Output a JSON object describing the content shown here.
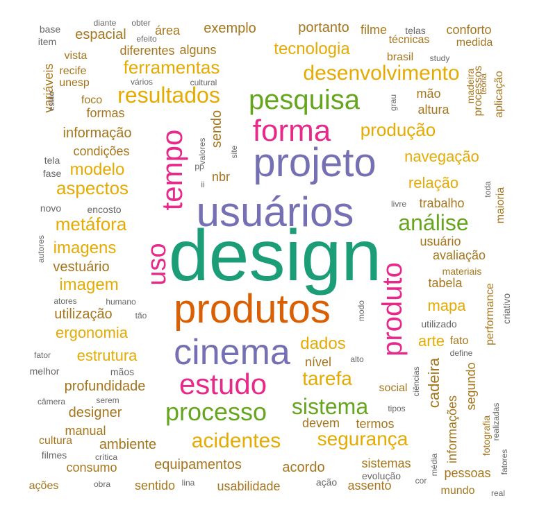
{
  "wordcloud": {
    "palette": {
      "green": "#1b9e77",
      "orange": "#d95f02",
      "purple": "#7570b3",
      "magenta": "#e7298a",
      "leaf": "#66a61e",
      "gold": "#e6ab02",
      "brown": "#a6761d",
      "gray": "#666666"
    },
    "words": [
      {
        "text": "design",
        "color": "green",
        "rotate": 0
      },
      {
        "text": "produtos",
        "color": "orange",
        "rotate": 0
      },
      {
        "text": "usuários",
        "color": "purple",
        "rotate": 0
      },
      {
        "text": "projeto",
        "color": "purple",
        "rotate": 0
      },
      {
        "text": "cinema",
        "color": "purple",
        "rotate": 0
      },
      {
        "text": "forma",
        "color": "magenta",
        "rotate": 0
      },
      {
        "text": "estudo",
        "color": "magenta",
        "rotate": 0
      },
      {
        "text": "tempo",
        "color": "magenta",
        "rotate": -90
      },
      {
        "text": "uso",
        "color": "magenta",
        "rotate": -90
      },
      {
        "text": "produto",
        "color": "magenta",
        "rotate": -90
      },
      {
        "text": "pesquisa",
        "color": "leaf",
        "rotate": 0
      },
      {
        "text": "processo",
        "color": "leaf",
        "rotate": 0
      },
      {
        "text": "sistema",
        "color": "leaf",
        "rotate": 0
      },
      {
        "text": "análise",
        "color": "leaf",
        "rotate": 0
      },
      {
        "text": "desenvolvimento",
        "color": "gold",
        "rotate": 0
      },
      {
        "text": "resultados",
        "color": "gold",
        "rotate": 0
      },
      {
        "text": "ferramentas",
        "color": "gold",
        "rotate": 0
      },
      {
        "text": "tecnologia",
        "color": "gold",
        "rotate": 0
      },
      {
        "text": "produção",
        "color": "gold",
        "rotate": 0
      },
      {
        "text": "navegação",
        "color": "gold",
        "rotate": 0
      },
      {
        "text": "relação",
        "color": "gold",
        "rotate": 0
      },
      {
        "text": "aspectos",
        "color": "gold",
        "rotate": 0
      },
      {
        "text": "modelo",
        "color": "gold",
        "rotate": 0
      },
      {
        "text": "metáfora",
        "color": "gold",
        "rotate": 0
      },
      {
        "text": "imagens",
        "color": "gold",
        "rotate": 0
      },
      {
        "text": "imagem",
        "color": "gold",
        "rotate": 0
      },
      {
        "text": "ergonomia",
        "color": "gold",
        "rotate": 0
      },
      {
        "text": "estrutura",
        "color": "gold",
        "rotate": 0
      },
      {
        "text": "tarefa",
        "color": "gold",
        "rotate": 0
      },
      {
        "text": "dados",
        "color": "gold",
        "rotate": 0
      },
      {
        "text": "acidentes",
        "color": "gold",
        "rotate": 0
      },
      {
        "text": "segurança",
        "color": "gold",
        "rotate": 0
      },
      {
        "text": "mapa",
        "color": "gold",
        "rotate": 0
      },
      {
        "text": "arte",
        "color": "gold",
        "rotate": 0
      },
      {
        "text": "exemplo",
        "color": "brown",
        "rotate": 0
      },
      {
        "text": "portanto",
        "color": "brown",
        "rotate": 0
      },
      {
        "text": "filme",
        "color": "brown",
        "rotate": 0
      },
      {
        "text": "conforto",
        "color": "brown",
        "rotate": 0
      },
      {
        "text": "técnicas",
        "color": "brown",
        "rotate": 0
      },
      {
        "text": "medida",
        "color": "brown",
        "rotate": 0
      },
      {
        "text": "brasil",
        "color": "brown",
        "rotate": 0
      },
      {
        "text": "espacial",
        "color": "brown",
        "rotate": 0
      },
      {
        "text": "área",
        "color": "brown",
        "rotate": 0
      },
      {
        "text": "diferentes",
        "color": "brown",
        "rotate": 0
      },
      {
        "text": "alguns",
        "color": "brown",
        "rotate": 0
      },
      {
        "text": "vista",
        "color": "brown",
        "rotate": 0
      },
      {
        "text": "recife",
        "color": "brown",
        "rotate": 0
      },
      {
        "text": "unesp",
        "color": "brown",
        "rotate": 0
      },
      {
        "text": "foco",
        "color": "brown",
        "rotate": 0
      },
      {
        "text": "formas",
        "color": "brown",
        "rotate": 0
      },
      {
        "text": "informação",
        "color": "brown",
        "rotate": 0
      },
      {
        "text": "condições",
        "color": "brown",
        "rotate": 0
      },
      {
        "text": "vestuário",
        "color": "brown",
        "rotate": 0
      },
      {
        "text": "utilização",
        "color": "brown",
        "rotate": 0
      },
      {
        "text": "profundidade",
        "color": "brown",
        "rotate": 0
      },
      {
        "text": "designer",
        "color": "brown",
        "rotate": 0
      },
      {
        "text": "manual",
        "color": "brown",
        "rotate": 0
      },
      {
        "text": "cultura",
        "color": "brown",
        "rotate": 0
      },
      {
        "text": "ambiente",
        "color": "brown",
        "rotate": 0
      },
      {
        "text": "consumo",
        "color": "brown",
        "rotate": 0
      },
      {
        "text": "equipamentos",
        "color": "brown",
        "rotate": 0
      },
      {
        "text": "acordo",
        "color": "brown",
        "rotate": 0
      },
      {
        "text": "sistemas",
        "color": "brown",
        "rotate": 0
      },
      {
        "text": "sentido",
        "color": "brown",
        "rotate": 0
      },
      {
        "text": "usabilidade",
        "color": "brown",
        "rotate": 0
      },
      {
        "text": "assento",
        "color": "brown",
        "rotate": 0
      },
      {
        "text": "pessoas",
        "color": "brown",
        "rotate": 0
      },
      {
        "text": "ações",
        "color": "brown",
        "rotate": 0
      },
      {
        "text": "mundo",
        "color": "brown",
        "rotate": 0
      },
      {
        "text": "mão",
        "color": "brown",
        "rotate": 0
      },
      {
        "text": "altura",
        "color": "brown",
        "rotate": 0
      },
      {
        "text": "trabalho",
        "color": "brown",
        "rotate": 0
      },
      {
        "text": "usuário",
        "color": "brown",
        "rotate": 0
      },
      {
        "text": "avaliação",
        "color": "brown",
        "rotate": 0
      },
      {
        "text": "materiais",
        "color": "brown",
        "rotate": 0
      },
      {
        "text": "tabela",
        "color": "brown",
        "rotate": 0
      },
      {
        "text": "fato",
        "color": "brown",
        "rotate": 0
      },
      {
        "text": "nível",
        "color": "brown",
        "rotate": 0
      },
      {
        "text": "devem",
        "color": "brown",
        "rotate": 0
      },
      {
        "text": "termos",
        "color": "brown",
        "rotate": 0
      },
      {
        "text": "social",
        "color": "brown",
        "rotate": 0
      },
      {
        "text": "sendo",
        "color": "brown",
        "rotate": -90
      },
      {
        "text": "nbr",
        "color": "brown",
        "rotate": 0
      },
      {
        "text": "variáveis",
        "color": "brown",
        "rotate": -90
      },
      {
        "text": "processos",
        "color": "brown",
        "rotate": -90
      },
      {
        "text": "aplicação",
        "color": "brown",
        "rotate": -90
      },
      {
        "text": "maioria",
        "color": "brown",
        "rotate": -90
      },
      {
        "text": "cadeira",
        "color": "brown",
        "rotate": -90
      },
      {
        "text": "segundo",
        "color": "brown",
        "rotate": -90
      },
      {
        "text": "performance",
        "color": "brown",
        "rotate": -90
      },
      {
        "text": "informações",
        "color": "brown",
        "rotate": -90
      },
      {
        "text": "fotografia",
        "color": "brown",
        "rotate": -90
      },
      {
        "text": "madeira",
        "color": "brown",
        "rotate": -90
      },
      {
        "text": "teoria",
        "color": "brown",
        "rotate": -90
      },
      {
        "text": "base",
        "color": "gray",
        "rotate": 0
      },
      {
        "text": "item",
        "color": "gray",
        "rotate": 0
      },
      {
        "text": "diante",
        "color": "gray",
        "rotate": 0
      },
      {
        "text": "obter",
        "color": "gray",
        "rotate": 0
      },
      {
        "text": "efeito",
        "color": "gray",
        "rotate": 0
      },
      {
        "text": "telas",
        "color": "gray",
        "rotate": 0
      },
      {
        "text": "study",
        "color": "gray",
        "rotate": 0
      },
      {
        "text": "vários",
        "color": "gray",
        "rotate": 0
      },
      {
        "text": "cultural",
        "color": "gray",
        "rotate": 0
      },
      {
        "text": "estilo",
        "color": "gray",
        "rotate": -90
      },
      {
        "text": "grau",
        "color": "gray",
        "rotate": -90
      },
      {
        "text": "valores",
        "color": "gray",
        "rotate": -90
      },
      {
        "text": "site",
        "color": "gray",
        "rotate": -90
      },
      {
        "text": "pp",
        "color": "gray",
        "rotate": 0
      },
      {
        "text": "ii",
        "color": "gray",
        "rotate": 0
      },
      {
        "text": "tela",
        "color": "gray",
        "rotate": 0
      },
      {
        "text": "fase",
        "color": "gray",
        "rotate": 0
      },
      {
        "text": "novo",
        "color": "gray",
        "rotate": 0
      },
      {
        "text": "encosto",
        "color": "gray",
        "rotate": 0
      },
      {
        "text": "autores",
        "color": "gray",
        "rotate": -90
      },
      {
        "text": "atores",
        "color": "gray",
        "rotate": 0
      },
      {
        "text": "humano",
        "color": "gray",
        "rotate": 0
      },
      {
        "text": "tão",
        "color": "gray",
        "rotate": 0
      },
      {
        "text": "fator",
        "color": "gray",
        "rotate": 0
      },
      {
        "text": "melhor",
        "color": "gray",
        "rotate": 0
      },
      {
        "text": "mãos",
        "color": "gray",
        "rotate": 0
      },
      {
        "text": "câmera",
        "color": "gray",
        "rotate": 0
      },
      {
        "text": "serem",
        "color": "gray",
        "rotate": 0
      },
      {
        "text": "filmes",
        "color": "gray",
        "rotate": 0
      },
      {
        "text": "crítica",
        "color": "gray",
        "rotate": 0
      },
      {
        "text": "obra",
        "color": "gray",
        "rotate": 0
      },
      {
        "text": "lina",
        "color": "gray",
        "rotate": 0
      },
      {
        "text": "ação",
        "color": "gray",
        "rotate": 0
      },
      {
        "text": "evolução",
        "color": "gray",
        "rotate": 0
      },
      {
        "text": "cor",
        "color": "gray",
        "rotate": 0
      },
      {
        "text": "real",
        "color": "gray",
        "rotate": 0
      },
      {
        "text": "livre",
        "color": "gray",
        "rotate": 0
      },
      {
        "text": "toda",
        "color": "gray",
        "rotate": -90
      },
      {
        "text": "modo",
        "color": "gray",
        "rotate": -90
      },
      {
        "text": "criativo",
        "color": "gray",
        "rotate": -90
      },
      {
        "text": "utilizado",
        "color": "gray",
        "rotate": 0
      },
      {
        "text": "define",
        "color": "gray",
        "rotate": 0
      },
      {
        "text": "alto",
        "color": "gray",
        "rotate": 0
      },
      {
        "text": "ciências",
        "color": "gray",
        "rotate": -90
      },
      {
        "text": "tipos",
        "color": "gray",
        "rotate": 0
      },
      {
        "text": "média",
        "color": "gray",
        "rotate": -90
      },
      {
        "text": "fatores",
        "color": "gray",
        "rotate": -90
      },
      {
        "text": "realizadas",
        "color": "gray",
        "rotate": -90
      }
    ]
  }
}
